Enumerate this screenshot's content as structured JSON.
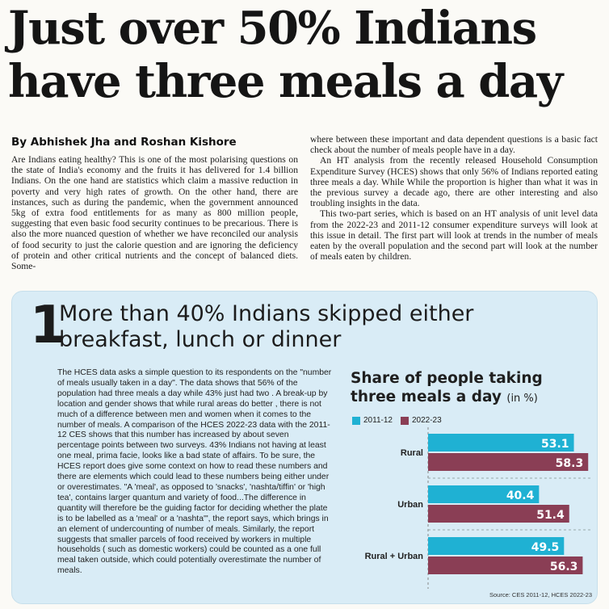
{
  "article": {
    "headline": "Just over 50% Indians have three meals a day",
    "byline": "By Abhishek Jha and Roshan Kishore",
    "left_paragraph": "Are Indians eating healthy? This is one of the most polarising questions on the state of India's economy and the fruits it has delivered for 1.4 billion Indians. On the one hand are statistics which claim a massive reduction in poverty and very high rates of growth. On the other hand, there are instances, such as during the pandemic, when the government announced 5kg of extra food entitlements for as many as 800 million people, suggesting that even basic food security continues to be precarious. There is also the more nuanced question of whether we have reconciled our analysis of food security to just the calorie question and are ignoring the deficiency of protein and other critical nutrients and the concept of balanced diets. Some-",
    "right_paragraphs": [
      "where between these important and data dependent questions is a basic fact check about the number of meals people have in a day.",
      "An HT analysis from the recently released Household Consumption Expenditure Survey (HCES) shows that only 56% of Indians reported eating three meals a day. While While the proportion is higher than what it was in the previous survey a decade ago, there are other interesting and also troubling insights in the data.",
      "This two-part series, which is based on an HT analysis of unit level data from the 2022-23 and 2011-12 consumer expenditure surveys will look at this issue in detail. The first part will look at trends in the number of meals eaten by the overall population and the second part will look at the number of meals eaten by children."
    ]
  },
  "panel": {
    "number": "1",
    "title": "More than 40% Indians skipped either breakfast, lunch or dinner",
    "body": "The HCES data asks a simple question to its respondents on the \"number of meals usually taken in a day\". The data shows that 56% of the population had three meals a day while 43% just had two . A break-up by location and gender shows that while rural areas do better , there is not much of a difference between men and women when it comes to the number of meals. A comparison of the HCES 2022-23 data with the 2011-12 CES shows that this number has increased by about seven percentage points between two surveys. 43% Indians not having at least one meal, prima facie, looks like a bad state of affairs. To be sure, the HCES report does give some context on how to read these numbers and there are elements which could lead to these numbers being either under or overestimates. \"A 'meal', as opposed to 'snacks', 'nashta/tiffin' or 'high tea', contains larger quantum and variety of food...The difference in quantity will therefore be the guiding factor for deciding whether the plate is to be labelled as a 'meal' or a 'nashta'\", the report says, which brings in an element of undercounting of number of meals. Similarly, the report suggests that smaller parcels of food received by workers in multiple households ( such as domestic workers) could be counted as a one full meal taken outside, which could potentially overestimate the number of meals."
  },
  "chart_data": {
    "type": "bar",
    "orientation": "horizontal",
    "title": "Share of people taking three meals a day",
    "unit": "(in %)",
    "categories": [
      "Rural",
      "Urban",
      "Rural + Urban"
    ],
    "series": [
      {
        "name": "2011-12",
        "color": "#1fb1d3",
        "values": [
          53.1,
          40.4,
          49.5
        ]
      },
      {
        "name": "2022-23",
        "color": "#8a3e55",
        "values": [
          58.3,
          51.4,
          56.3
        ]
      }
    ],
    "xlim": [
      0,
      60
    ],
    "grid": "dashed separators between categories",
    "legend": "top-left",
    "source": "Source: CES 2011-12, HCES 2022-23"
  }
}
